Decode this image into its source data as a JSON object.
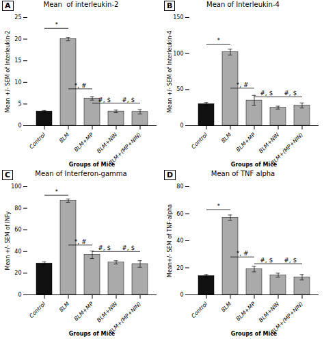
{
  "chart_data": [
    {
      "type": "bar",
      "panel_label": "A",
      "title": "Mean  of interleukin-2",
      "ylabel": "Mean +/- SEM of Interleukin-2",
      "xlabel": "Groups of Mice",
      "ylim": [
        0,
        25
      ],
      "yticks": [
        0,
        5,
        10,
        15,
        20,
        25
      ],
      "grid": false,
      "categories": [
        "Control",
        "BLM",
        "BLM+MP",
        "BLM+NIN",
        "BLM+(MP+NIN)"
      ],
      "values": [
        3.3,
        20.0,
        6.3,
        3.3,
        3.2
      ],
      "errors": [
        0.2,
        0.4,
        0.4,
        0.3,
        0.5
      ],
      "colors": [
        "#111111",
        "#aaaaaa",
        "#aaaaaa",
        "#aaaaaa",
        "#aaaaaa"
      ],
      "annotations": [
        {
          "from": "Control",
          "to": "BLM",
          "y": 22.5,
          "text": "*"
        },
        {
          "from": "BLM",
          "to": "BLM+MP",
          "y": 8.5,
          "text": "*, #"
        },
        {
          "from": "BLM+MP",
          "to": "BLM+NIN",
          "y": 5.2,
          "text": "#, $"
        },
        {
          "from": "BLM+NIN",
          "to": "BLM+(MP+NIN)",
          "y": 5.2,
          "text": "#, $"
        }
      ]
    },
    {
      "type": "bar",
      "panel_label": "B",
      "title": "Mean of Interleukin-4",
      "ylabel": "Mean +/- SEM of Interleukin-4",
      "xlabel": "Groups of Mice",
      "ylim": [
        0,
        150
      ],
      "yticks": [
        0,
        50,
        100,
        150
      ],
      "grid": false,
      "categories": [
        "Control",
        "BLM",
        "BLM+MP",
        "BLM+NIN",
        "BLM+(MP+NIN)"
      ],
      "values": [
        30.0,
        102.0,
        35.0,
        25.0,
        28.0
      ],
      "errors": [
        2.0,
        4.0,
        7.0,
        2.0,
        3.5
      ],
      "colors": [
        "#111111",
        "#aaaaaa",
        "#aaaaaa",
        "#aaaaaa",
        "#aaaaaa"
      ],
      "annotations": [
        {
          "from": "Control",
          "to": "BLM",
          "y": 113,
          "text": "*"
        },
        {
          "from": "BLM",
          "to": "BLM+MP",
          "y": 52,
          "text": "*, #"
        },
        {
          "from": "BLM+MP",
          "to": "BLM+NIN",
          "y": 40,
          "text": "#, $"
        },
        {
          "from": "BLM+NIN",
          "to": "BLM+(MP+NIN)",
          "y": 40,
          "text": "#, $"
        }
      ]
    },
    {
      "type": "bar",
      "panel_label": "C",
      "title": "Mean of Interferon-gamma",
      "ylabel": "Mean +/- SEM of INFy",
      "xlabel": "Groups of Mice",
      "ylim": [
        0,
        100
      ],
      "yticks": [
        0,
        20,
        40,
        60,
        80,
        100
      ],
      "grid": false,
      "categories": [
        "Control",
        "BLM",
        "BLM+MP",
        "BLM+NIN",
        "BLM+(MP+NIN)"
      ],
      "values": [
        29.0,
        87.0,
        37.0,
        30.0,
        28.5
      ],
      "errors": [
        1.5,
        1.5,
        3.5,
        1.5,
        3.0
      ],
      "colors": [
        "#111111",
        "#aaaaaa",
        "#aaaaaa",
        "#aaaaaa",
        "#aaaaaa"
      ],
      "annotations": [
        {
          "from": "Control",
          "to": "BLM",
          "y": 92,
          "text": "*"
        },
        {
          "from": "BLM",
          "to": "BLM+MP",
          "y": 46,
          "text": "*, #"
        },
        {
          "from": "BLM+MP",
          "to": "BLM+NIN",
          "y": 40,
          "text": "#, $"
        },
        {
          "from": "BLM+NIN",
          "to": "BLM+(MP+NIN)",
          "y": 40,
          "text": "#, $"
        }
      ]
    },
    {
      "type": "bar",
      "panel_label": "D",
      "title": "Mean of TNF alpha",
      "ylabel": "Mean+/- SEM of TNF-alpha",
      "xlabel": "Groups of Mice",
      "ylim": [
        0,
        80
      ],
      "yticks": [
        0,
        20,
        40,
        60,
        80
      ],
      "grid": false,
      "categories": [
        "Control",
        "BLM",
        "BLM+MP",
        "BLM+NIN",
        "BLM+(MP+NIN)"
      ],
      "values": [
        14.0,
        57.0,
        19.0,
        14.5,
        13.0
      ],
      "errors": [
        1.0,
        2.0,
        2.0,
        1.5,
        2.0
      ],
      "colors": [
        "#111111",
        "#aaaaaa",
        "#aaaaaa",
        "#aaaaaa",
        "#aaaaaa"
      ],
      "annotations": [
        {
          "from": "Control",
          "to": "BLM",
          "y": 63,
          "text": "*"
        },
        {
          "from": "BLM",
          "to": "BLM+MP",
          "y": 28,
          "text": "*, #"
        },
        {
          "from": "BLM+MP",
          "to": "BLM+NIN",
          "y": 23,
          "text": "#, $"
        },
        {
          "from": "BLM+NIN",
          "to": "BLM+(MP+NIN)",
          "y": 23,
          "text": "#, $"
        }
      ]
    }
  ]
}
